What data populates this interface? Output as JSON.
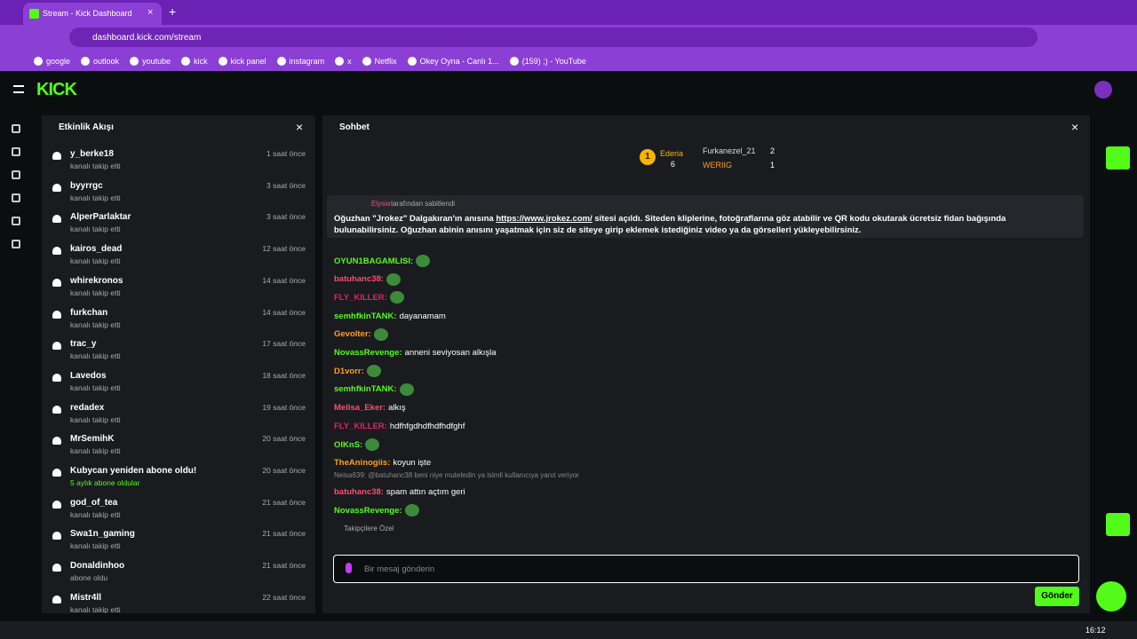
{
  "browser": {
    "tab_title": "Stream - Kick Dashboard",
    "url": "dashboard.kick.com/stream",
    "bookmarks": [
      "google",
      "outlook",
      "youtube",
      "kick",
      "kick panel",
      "instagram",
      "x",
      "Netflix",
      "Okey Oyna - Canlı 1...",
      "(159) ;) - YouTube"
    ]
  },
  "activity": {
    "title": "Etkinlik Akışı",
    "items": [
      {
        "name": "y_berke18",
        "desc": "kanalı takip etti",
        "time": "1 saat önce"
      },
      {
        "name": "byyrrgc",
        "desc": "kanalı takip etti",
        "time": "3 saat önce"
      },
      {
        "name": "AlperParlaktar",
        "desc": "kanalı takip etti",
        "time": "3 saat önce"
      },
      {
        "name": "kairos_dead",
        "desc": "kanalı takip etti",
        "time": "12 saat önce"
      },
      {
        "name": "whirekronos",
        "desc": "kanalı takip etti",
        "time": "14 saat önce"
      },
      {
        "name": "furkchan",
        "desc": "kanalı takip etti",
        "time": "14 saat önce"
      },
      {
        "name": "trac_y",
        "desc": "kanalı takip etti",
        "time": "17 saat önce"
      },
      {
        "name": "Lavedos",
        "desc": "kanalı takip etti",
        "time": "18 saat önce"
      },
      {
        "name": "redadex",
        "desc": "kanalı takip etti",
        "time": "19 saat önce"
      },
      {
        "name": "MrSemihK",
        "desc": "kanalı takip etti",
        "time": "20 saat önce"
      },
      {
        "name": "Kubycan yeniden abone oldu!",
        "desc": "5 aylık abone oldular",
        "time": "20 saat önce"
      },
      {
        "name": "god_of_tea",
        "desc": "kanalı takip etti",
        "time": "21 saat önce"
      },
      {
        "name": "Swa1n_gaming",
        "desc": "kanalı takip etti",
        "time": "21 saat önce"
      },
      {
        "name": "Donaldinhoo",
        "desc": "abone oldu",
        "time": "21 saat önce"
      },
      {
        "name": "Mistr4ll",
        "desc": "kanalı takip etti",
        "time": "22 saat önce"
      }
    ]
  },
  "chat": {
    "title": "Sohbet",
    "leaderboard": {
      "first": {
        "rank": 1,
        "name": "Ederia",
        "count": 6
      },
      "others": [
        {
          "name": "Furkanezel_21",
          "count": 2
        },
        {
          "name": "WERIIG",
          "count": 1
        }
      ]
    },
    "pinned": {
      "by": "Elysia",
      "by_suffix": "tarafından sabitlendi",
      "before": "Oğuzhan \"Jrokez\" Dalgakıran'ın anısına ",
      "link": "https://www.jrokez.com/",
      "after": " sitesi açıldı. Siteden kliplerine, fotoğraflarına göz atabilir ve QR kodu okutarak ücretsiz fidan bağışında bulunabilirsiniz. Oğuzhan abinin anısını yaşatmak için siz de siteye girip eklemek istediğiniz video ya da görselleri yükleyebilirsiniz."
    },
    "messages": [
      {
        "user": "OYUN1BAGAMLISI:",
        "color": "#53fc18"
      },
      {
        "user": "batuhanc38:",
        "color": "#ff4d6d"
      },
      {
        "user": "FLY_KILLER:",
        "color": "#e0245e"
      },
      {
        "user": "semhfkinTANK:",
        "color": "#53fc18",
        "text": "dayanamam"
      },
      {
        "user": "Gevolter:",
        "color": "#ff9f1a"
      },
      {
        "user": "NovassRevenge:",
        "color": "#53fc18",
        "text": "anneni seviyosan alkışla"
      },
      {
        "user": "D1vorr:",
        "color": "#ff9f1a"
      },
      {
        "user": "semhfkinTANK:",
        "color": "#53fc18"
      },
      {
        "user": "Melisa_Eker:",
        "color": "#ff4d6d",
        "text": "alkış"
      },
      {
        "user": "FLY_KILLER:",
        "color": "#e0245e",
        "text": "hdfhfgdhdfhdfhdfghf"
      },
      {
        "user": "OlKnS:",
        "color": "#53fc18"
      },
      {
        "user": "TheAninogiis:",
        "color": "#ff9f1a",
        "text": "koyun işte"
      },
      {
        "reply": "Neisa639: @batuhanc38 beni niye muteledin ya isimli kullanıcıya yanıt veriyor",
        "user": "batuhanc38:",
        "color": "#ff4d6d",
        "text": "spam attın açtım geri"
      },
      {
        "user": "NovassRevenge:",
        "color": "#53fc18"
      }
    ],
    "followers_label": "Takipçilere Özel",
    "placeholder": "Bir mesaj gönderin",
    "send": "Gönder"
  },
  "taskbar": {
    "time": "16:12"
  }
}
